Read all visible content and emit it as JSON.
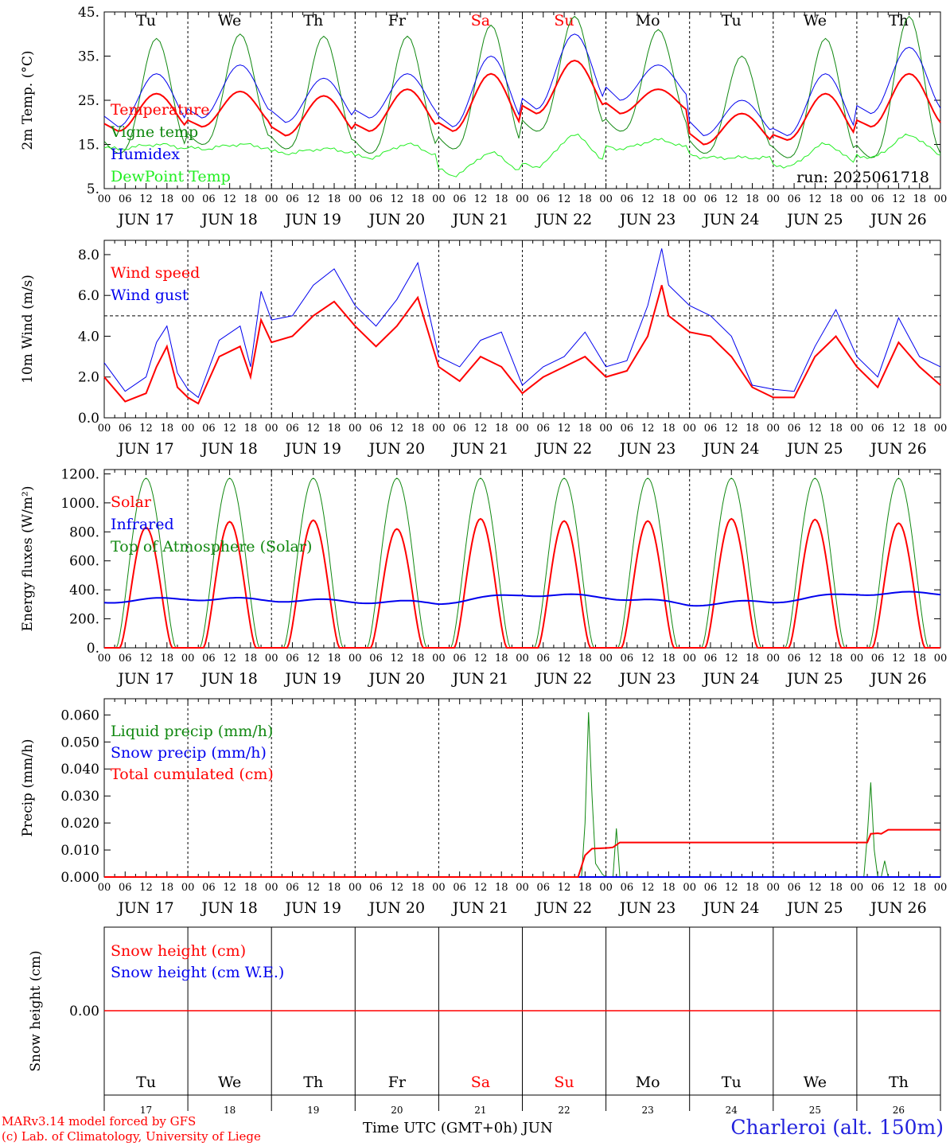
{
  "days": [
    {
      "abbr": "Tu",
      "month_label": "JUN 17",
      "day_num": "17",
      "weekend": false
    },
    {
      "abbr": "We",
      "month_label": "JUN 18",
      "day_num": "18",
      "weekend": false
    },
    {
      "abbr": "Th",
      "month_label": "JUN 19",
      "day_num": "19",
      "weekend": false
    },
    {
      "abbr": "Fr",
      "month_label": "JUN 20",
      "day_num": "20",
      "weekend": false
    },
    {
      "abbr": "Sa",
      "month_label": "JUN 21",
      "day_num": "21",
      "weekend": true
    },
    {
      "abbr": "Su",
      "month_label": "JUN 22",
      "day_num": "22",
      "weekend": true
    },
    {
      "abbr": "Mo",
      "month_label": "JUN 23",
      "day_num": "23",
      "weekend": false
    },
    {
      "abbr": "Tu",
      "month_label": "JUN 24",
      "day_num": "24",
      "weekend": false
    },
    {
      "abbr": "We",
      "month_label": "JUN 25",
      "day_num": "25",
      "weekend": false
    },
    {
      "abbr": "Th",
      "month_label": "JUN 26",
      "day_num": "26",
      "weekend": false
    }
  ],
  "hour_ticks": [
    "00",
    "06",
    "12",
    "18"
  ],
  "colors": {
    "red": "#ff0000",
    "green": "#118811",
    "blue": "#0000ee",
    "lightgreen": "#22ee22",
    "weekend": "#ff0000",
    "station": "#2222dd"
  },
  "footer": {
    "credit_line1": "MARv3.14 model forced by GFS",
    "credit_line2": "(c) Lab. of Climatology, University of Liege",
    "xaxis_title": "Time UTC (GMT+0h) JUN",
    "station": "Charleroi (alt. 150m)"
  },
  "chart_data": [
    {
      "type": "line",
      "ylabel": "2m Temp. (°C)",
      "ylim": [
        5,
        45
      ],
      "yticks": [
        "5.",
        "15.",
        "25.",
        "35.",
        "45."
      ],
      "annotation": "run: 2025061718",
      "legend_placement": "left",
      "series": [
        {
          "name": "Temperature",
          "color": "red",
          "min": [
            18,
            19,
            17,
            18,
            18,
            22,
            22,
            15,
            16,
            19
          ],
          "max": [
            26.5,
            27,
            26,
            27.5,
            31,
            34,
            27.5,
            22,
            26.5,
            31
          ]
        },
        {
          "name": "Vigne temp",
          "color": "green",
          "min": [
            13,
            15,
            14,
            13,
            14,
            18,
            18,
            13,
            12,
            12
          ],
          "max": [
            39,
            40,
            39.5,
            39.5,
            42,
            44,
            41,
            35,
            39,
            44
          ]
        },
        {
          "name": "Humidex",
          "color": "blue",
          "min": [
            19,
            21,
            20,
            21,
            19,
            23,
            25,
            17,
            17,
            22
          ],
          "max": [
            31,
            33,
            30,
            31,
            35,
            40,
            33,
            25,
            31,
            37
          ]
        },
        {
          "name": "DewPoint Temp",
          "color": "lightgreen",
          "min": [
            14,
            14,
            13,
            12,
            8,
            10,
            14,
            12,
            10,
            12
          ],
          "max": [
            15,
            15,
            14,
            15,
            13,
            17,
            16,
            12,
            15,
            17
          ]
        }
      ]
    },
    {
      "type": "line",
      "ylabel": "10m Wind (m/s)",
      "ylim": [
        0,
        8.7
      ],
      "yticks": [
        "0.0",
        "2.0",
        "4.0",
        "6.0",
        "8.0"
      ],
      "reference_line": 5.0,
      "legend_placement": "left",
      "series": [
        {
          "name": "Wind speed",
          "color": "red",
          "points": [
            [
              0,
              2
            ],
            [
              6,
              0.8
            ],
            [
              12,
              1.2
            ],
            [
              15,
              2.5
            ],
            [
              18,
              3.5
            ],
            [
              21,
              1.5
            ],
            [
              24,
              1
            ],
            [
              27,
              0.7
            ],
            [
              33,
              3
            ],
            [
              39,
              3.5
            ],
            [
              42,
              2
            ],
            [
              45,
              4.8
            ],
            [
              48,
              3.7
            ],
            [
              54,
              4
            ],
            [
              60,
              5
            ],
            [
              66,
              5.7
            ],
            [
              72,
              4.5
            ],
            [
              78,
              3.5
            ],
            [
              84,
              4.5
            ],
            [
              90,
              5.9
            ],
            [
              96,
              2.5
            ],
            [
              102,
              1.8
            ],
            [
              108,
              3
            ],
            [
              114,
              2.5
            ],
            [
              120,
              1.2
            ],
            [
              126,
              2
            ],
            [
              132,
              2.5
            ],
            [
              138,
              3
            ],
            [
              144,
              2
            ],
            [
              150,
              2.3
            ],
            [
              156,
              4
            ],
            [
              160,
              6.5
            ],
            [
              162,
              5
            ],
            [
              168,
              4.2
            ],
            [
              174,
              4
            ],
            [
              180,
              3
            ],
            [
              186,
              1.5
            ],
            [
              192,
              1
            ],
            [
              198,
              1
            ],
            [
              204,
              3
            ],
            [
              210,
              4
            ],
            [
              216,
              2.5
            ],
            [
              222,
              1.5
            ],
            [
              228,
              3.7
            ],
            [
              234,
              2.5
            ],
            [
              240,
              1.6
            ]
          ]
        },
        {
          "name": "Wind gust",
          "color": "blue",
          "points": [
            [
              0,
              2.7
            ],
            [
              6,
              1.3
            ],
            [
              12,
              2
            ],
            [
              15,
              3.7
            ],
            [
              18,
              4.5
            ],
            [
              21,
              2.2
            ],
            [
              24,
              1.4
            ],
            [
              27,
              1
            ],
            [
              33,
              3.8
            ],
            [
              39,
              4.5
            ],
            [
              42,
              2.5
            ],
            [
              45,
              6.2
            ],
            [
              48,
              4.8
            ],
            [
              54,
              5
            ],
            [
              60,
              6.5
            ],
            [
              66,
              7.3
            ],
            [
              72,
              5.5
            ],
            [
              78,
              4.5
            ],
            [
              84,
              5.8
            ],
            [
              90,
              7.6
            ],
            [
              96,
              3
            ],
            [
              102,
              2.5
            ],
            [
              108,
              3.8
            ],
            [
              114,
              4.2
            ],
            [
              120,
              1.6
            ],
            [
              126,
              2.5
            ],
            [
              132,
              3
            ],
            [
              138,
              4.2
            ],
            [
              144,
              2.5
            ],
            [
              150,
              2.8
            ],
            [
              156,
              5.5
            ],
            [
              160,
              8.3
            ],
            [
              162,
              6.5
            ],
            [
              168,
              5.5
            ],
            [
              174,
              5
            ],
            [
              180,
              4
            ],
            [
              186,
              1.6
            ],
            [
              192,
              1.4
            ],
            [
              198,
              1.3
            ],
            [
              204,
              3.5
            ],
            [
              210,
              5.3
            ],
            [
              216,
              3
            ],
            [
              222,
              2
            ],
            [
              228,
              4.9
            ],
            [
              234,
              3
            ],
            [
              240,
              2.5
            ]
          ]
        }
      ]
    },
    {
      "type": "line",
      "ylabel": "Energy fluxes (W/m²)",
      "ylim": [
        0,
        1230
      ],
      "yticks": [
        "0.",
        "200.",
        "400.",
        "600.",
        "800.",
        "1000.",
        "1200."
      ],
      "legend_placement": "left",
      "series": [
        {
          "name": "Solar",
          "color": "red",
          "daily_peak": [
            830,
            870,
            880,
            820,
            890,
            875,
            875,
            890,
            885,
            860
          ]
        },
        {
          "name": "Infrared",
          "color": "blue",
          "baseline": [
            320,
            340,
            330,
            320,
            310,
            370,
            350,
            300,
            320,
            375
          ]
        },
        {
          "name": "Top of Atmosphere (Solar)",
          "color": "green",
          "daily_peak": [
            1170,
            1170,
            1170,
            1170,
            1170,
            1170,
            1170,
            1170,
            1170,
            1170
          ]
        }
      ]
    },
    {
      "type": "line",
      "ylabel": "Precip (mm/h)",
      "ylim": [
        0,
        0.066
      ],
      "yticks": [
        "0.000",
        "0.010",
        "0.020",
        "0.030",
        "0.040",
        "0.050",
        "0.060"
      ],
      "legend_placement": "left",
      "series": [
        {
          "name": "Liquid precip (mm/h)",
          "color": "green",
          "points": [
            [
              0,
              0
            ],
            [
              137,
              0
            ],
            [
              138,
              0.02
            ],
            [
              139,
              0.061
            ],
            [
              140,
              0.03
            ],
            [
              141,
              0.005
            ],
            [
              143,
              0.001
            ],
            [
              144,
              0
            ],
            [
              146,
              0
            ],
            [
              147,
              0.018
            ],
            [
              148,
              0
            ],
            [
              218,
              0
            ],
            [
              219,
              0.015
            ],
            [
              220,
              0.035
            ],
            [
              221,
              0.01
            ],
            [
              222,
              0
            ],
            [
              223,
              0
            ],
            [
              224,
              0.006
            ],
            [
              225,
              0
            ],
            [
              240,
              0
            ]
          ]
        },
        {
          "name": "Snow precip (mm/h)",
          "color": "blue",
          "points": [
            [
              0,
              0
            ],
            [
              240,
              0
            ]
          ]
        },
        {
          "name": "Total cumulated (cm)",
          "color": "red",
          "points": [
            [
              0,
              0
            ],
            [
              136,
              0
            ],
            [
              138,
              0.008
            ],
            [
              140,
              0.0105
            ],
            [
              145,
              0.0108
            ],
            [
              146,
              0.011
            ],
            [
              148,
              0.0128
            ],
            [
              219,
              0.0128
            ],
            [
              220,
              0.016
            ],
            [
              222,
              0.0162
            ],
            [
              223,
              0.016
            ],
            [
              225,
              0.0175
            ],
            [
              240,
              0.0175
            ]
          ]
        }
      ]
    },
    {
      "type": "line",
      "ylabel": "Snow height (cm)",
      "yticks": [
        "0.00"
      ],
      "legend_placement": "left",
      "series": [
        {
          "name": "Snow height (cm)",
          "color": "red",
          "points": [
            [
              0,
              0
            ],
            [
              240,
              0
            ]
          ]
        },
        {
          "name": "Snow height (cm W.E.)",
          "color": "blue",
          "points": [
            [
              0,
              0
            ],
            [
              240,
              0
            ]
          ]
        }
      ]
    }
  ]
}
